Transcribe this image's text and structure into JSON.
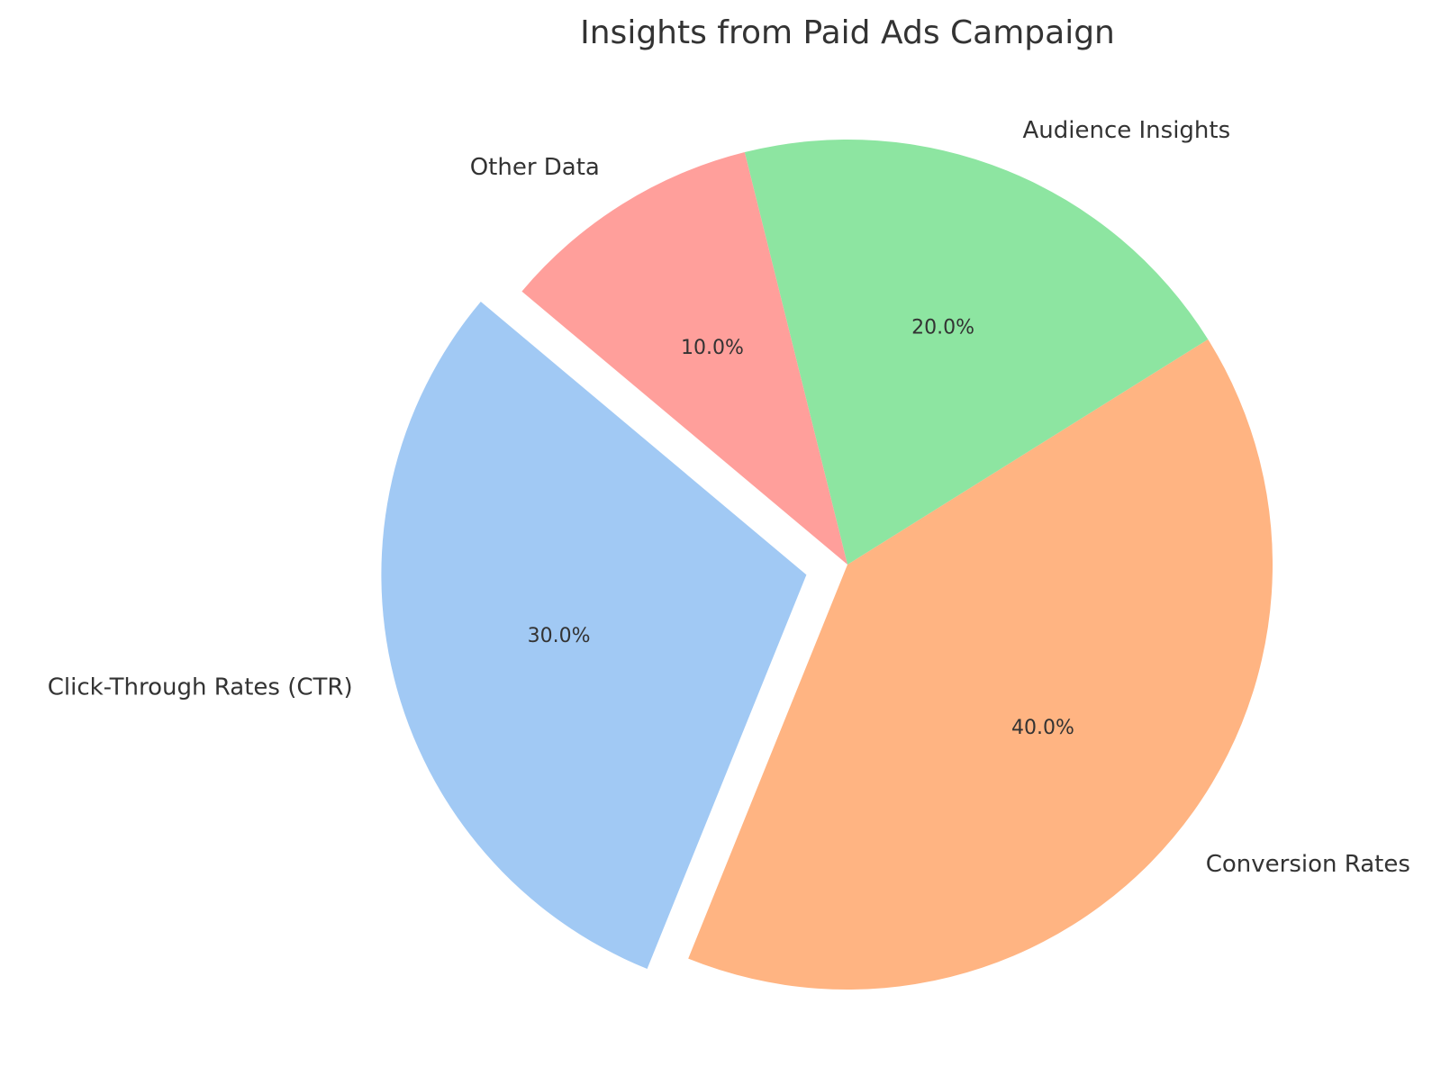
{
  "chart_data": {
    "type": "pie",
    "title": "Insights from Paid Ads Campaign",
    "start_angle_deg": 140,
    "direction": "counterclockwise",
    "slices": [
      {
        "label": "Click-Through Rates (CTR)",
        "value": 30,
        "pct_label": "30.0%",
        "color": "#a1c9f4",
        "exploded": true
      },
      {
        "label": "Conversion Rates",
        "value": 40,
        "pct_label": "40.0%",
        "color": "#ffb482",
        "exploded": false
      },
      {
        "label": "Audience Insights",
        "value": 20,
        "pct_label": "20.0%",
        "color": "#8de5a1",
        "exploded": false
      },
      {
        "label": "Other Data",
        "value": 10,
        "pct_label": "10.0%",
        "color": "#ff9f9b",
        "exploded": false
      }
    ]
  }
}
